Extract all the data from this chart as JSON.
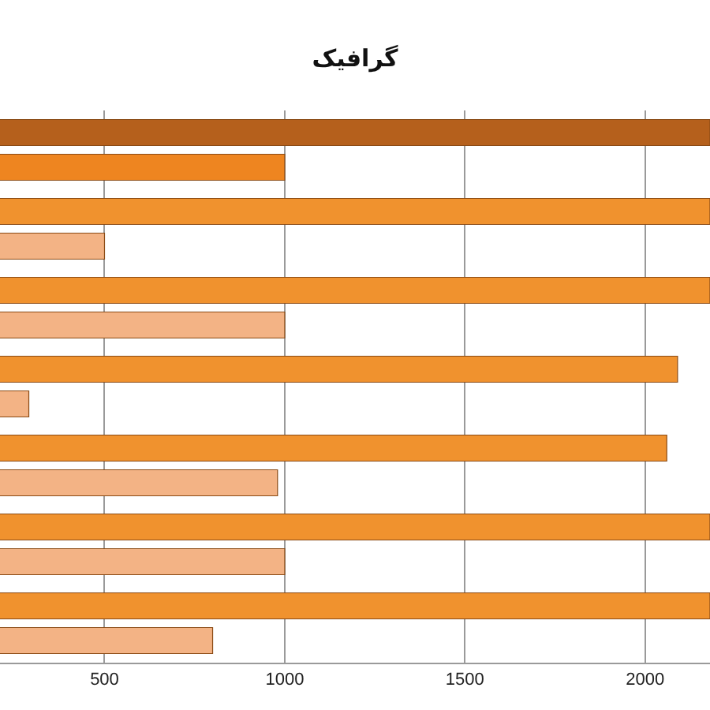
{
  "chart_data": {
    "type": "bar",
    "title": "گرافیک",
    "orientation": "horizontal",
    "categories": [
      null,
      null,
      null,
      null,
      null,
      null,
      null
    ],
    "series": [
      {
        "colors": [
          "#b5601c",
          "#f0922e",
          "#f0922e",
          "#f0922e",
          "#f0922e",
          "#f0922e",
          "#f0922e"
        ],
        "values": [
          2180,
          2180,
          2180,
          2090,
          2060,
          2180,
          2180
        ]
      },
      {
        "colors": [
          "#ee8520",
          "#f3b385",
          "#f3b385",
          "#f3b385",
          "#f3b385",
          "#f3b385",
          "#f3b385"
        ],
        "values": [
          1000,
          500,
          1000,
          290,
          980,
          1000,
          800
        ]
      }
    ],
    "xlim": [
      210,
      2180
    ],
    "xticks": [
      500,
      1000,
      1500,
      2000
    ],
    "grid": "x"
  }
}
